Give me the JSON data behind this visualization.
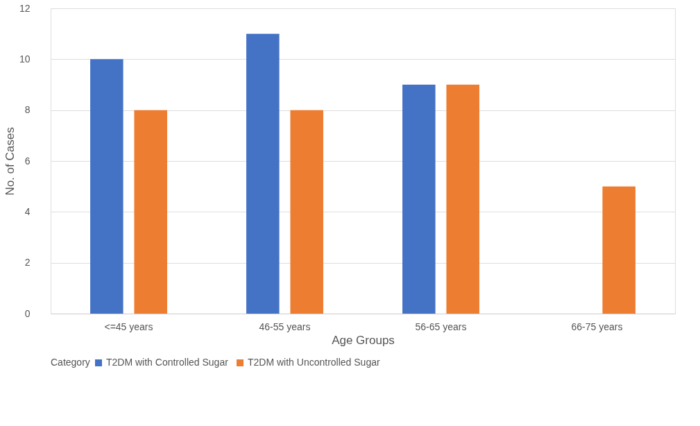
{
  "chart_data": {
    "type": "bar",
    "xlabel": "Age Groups",
    "ylabel": "No. of Cases",
    "legend_title": "Category",
    "categories": [
      "<=45 years",
      "46-55 years",
      "56-65 years",
      "66-75 years"
    ],
    "series": [
      {
        "name": "T2DM with Controlled Sugar",
        "color": "#4472c4",
        "values": [
          10,
          11,
          9,
          0
        ]
      },
      {
        "name": "T2DM with Uncontrolled Sugar",
        "color": "#ed7d31",
        "values": [
          8,
          8,
          9,
          5
        ]
      }
    ],
    "ylim": [
      0,
      12
    ],
    "yticks": [
      0,
      2,
      4,
      6,
      8,
      10,
      12
    ],
    "grid": "y",
    "legend": "bottom"
  }
}
